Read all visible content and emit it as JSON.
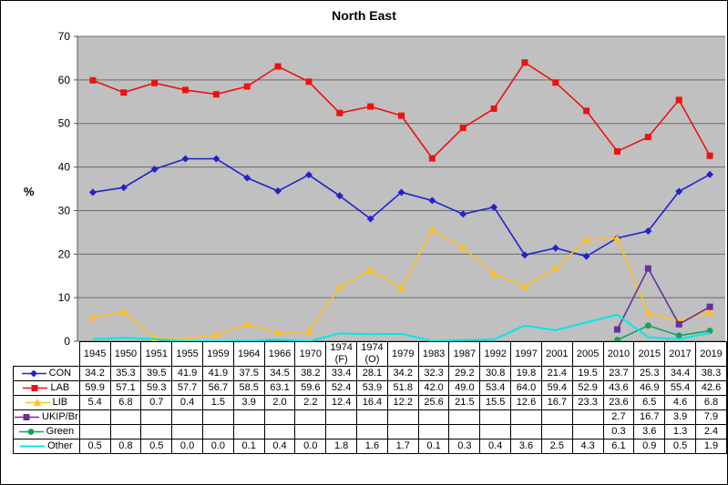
{
  "chart_data": {
    "type": "line",
    "title": "North East",
    "ylabel": "%",
    "xlabel": "",
    "ylim": [
      0,
      70
    ],
    "ytick_step": 10,
    "grid": true,
    "legend_position": "table-left",
    "plot_bg": "#C0C0C0",
    "grid_color": "#686868",
    "axis_color": "#555555",
    "categories": [
      "1945",
      "1950",
      "1951",
      "1955",
      "1959",
      "1964",
      "1966",
      "1970",
      "1974 (F)",
      "1974 (O)",
      "1979",
      "1983",
      "1987",
      "1992",
      "1997",
      "2001",
      "2005",
      "2010",
      "2015",
      "2017",
      "2019"
    ],
    "series": [
      {
        "name": "CON",
        "color": "#2222CC",
        "marker": "diamond",
        "line_width": 1.6,
        "values": [
          34.2,
          35.3,
          39.5,
          41.9,
          41.9,
          37.5,
          34.5,
          38.2,
          33.4,
          28.1,
          34.2,
          32.3,
          29.2,
          30.8,
          19.8,
          21.4,
          19.5,
          23.7,
          25.3,
          34.4,
          38.3
        ]
      },
      {
        "name": "LAB",
        "color": "#EE1111",
        "marker": "square",
        "line_width": 1.6,
        "values": [
          59.9,
          57.1,
          59.3,
          57.7,
          56.7,
          58.5,
          63.1,
          59.6,
          52.4,
          53.9,
          51.8,
          42.0,
          49.0,
          53.4,
          64.0,
          59.4,
          52.9,
          43.6,
          46.9,
          55.4,
          42.6
        ]
      },
      {
        "name": "LIB",
        "color": "#FFC125",
        "marker": "triangle",
        "line_width": 1.6,
        "values": [
          5.4,
          6.8,
          0.7,
          0.4,
          1.5,
          3.9,
          2.0,
          2.2,
          12.4,
          16.4,
          12.2,
          25.6,
          21.5,
          15.5,
          12.6,
          16.7,
          23.3,
          23.6,
          6.5,
          4.6,
          6.8
        ]
      },
      {
        "name": "UKIP/Br",
        "color": "#663399",
        "marker": "square",
        "line_width": 1.6,
        "values": [
          null,
          null,
          null,
          null,
          null,
          null,
          null,
          null,
          null,
          null,
          null,
          null,
          null,
          null,
          null,
          null,
          null,
          2.7,
          16.7,
          3.9,
          7.9
        ]
      },
      {
        "name": "Green",
        "color": "#17A05C",
        "marker": "circle",
        "line_width": 1.6,
        "values": [
          null,
          null,
          null,
          null,
          null,
          null,
          null,
          null,
          null,
          null,
          null,
          null,
          null,
          null,
          null,
          null,
          null,
          0.3,
          3.6,
          1.3,
          2.4
        ]
      },
      {
        "name": "Other",
        "color": "#00E8E8",
        "marker": "none",
        "line_width": 2,
        "values": [
          0.5,
          0.8,
          0.5,
          0.0,
          0.0,
          0.1,
          0.4,
          0.0,
          1.8,
          1.6,
          1.7,
          0.1,
          0.3,
          0.4,
          3.6,
          2.5,
          4.3,
          6.1,
          0.9,
          0.5,
          1.9
        ]
      }
    ]
  }
}
